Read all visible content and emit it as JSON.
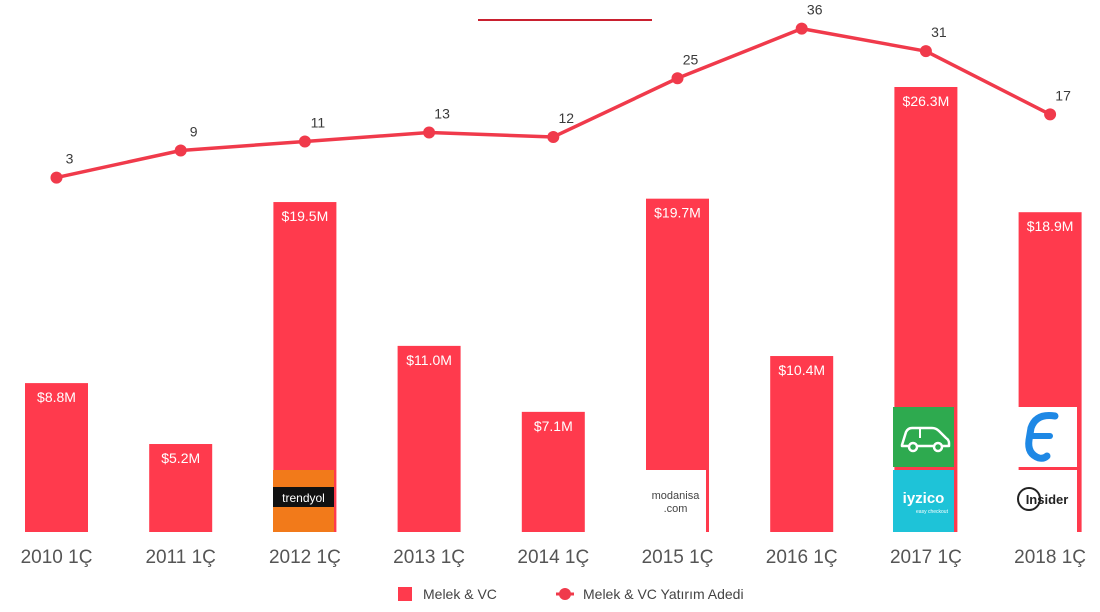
{
  "chart_data": {
    "type": "bar",
    "categories": [
      "2010 1Ç",
      "2011 1Ç",
      "2012 1Ç",
      "2013 1Ç",
      "2014 1Ç",
      "2015 1Ç",
      "2016 1Ç",
      "2017 1Ç",
      "2018 1Ç"
    ],
    "series": [
      {
        "name": "Melek & VC",
        "type": "bar",
        "values": [
          8.8,
          5.2,
          19.5,
          11.0,
          7.1,
          19.7,
          10.4,
          26.3,
          18.9
        ],
        "labels": [
          "$8.8M",
          "$5.2M",
          "$19.5M",
          "$11.0M",
          "$7.1M",
          "$19.7M",
          "$10.4M",
          "$26.3M",
          "$18.9M"
        ]
      },
      {
        "name": "Melek & VC Yatırım Adedi",
        "type": "line",
        "values": [
          3,
          9,
          11,
          13,
          12,
          25,
          36,
          31,
          17
        ]
      }
    ],
    "legend": "bottom",
    "grid": false,
    "colors": {
      "bar": "#ff3a4d",
      "line": "#f03a4b",
      "axis_text": "#555555"
    }
  },
  "logos": {
    "trendyol": "trendyol",
    "modanisa_top": "modanisa",
    "modanisa_bottom": ".com",
    "iyzico": "iyzico",
    "iyzico_sub": "easy checkout",
    "insider": "Insider"
  }
}
